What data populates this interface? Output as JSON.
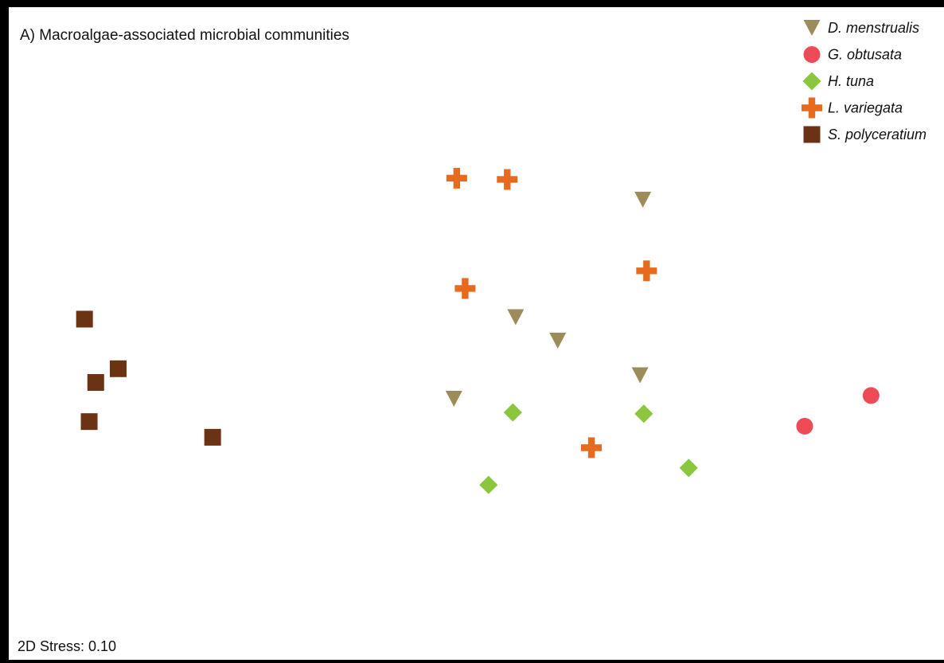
{
  "chart_data": {
    "type": "scatter",
    "title": "A) Macroalgae-associated microbial communities",
    "stress_label": "2D Stress: 0.10",
    "xlim": [
      0,
      100
    ],
    "ylim": [
      0,
      100
    ],
    "grid": false,
    "axes_shown": false,
    "legend_position": "top-right",
    "series": [
      {
        "name": "D. menstrualis",
        "marker": "triangle-down",
        "color": "#9b8c5a",
        "points": [
          [
            67.8,
            70.5
          ],
          [
            54.2,
            52.5
          ],
          [
            58.7,
            48.9
          ],
          [
            67.5,
            43.6
          ],
          [
            47.6,
            40.0
          ]
        ]
      },
      {
        "name": "G. obtusata",
        "marker": "circle",
        "color": "#ef4b57",
        "points": [
          [
            92.2,
            40.5
          ],
          [
            85.1,
            35.8
          ]
        ]
      },
      {
        "name": "H. tuna",
        "marker": "diamond",
        "color": "#8cc63f",
        "points": [
          [
            53.9,
            37.9
          ],
          [
            67.9,
            37.7
          ],
          [
            72.7,
            29.4
          ],
          [
            51.3,
            26.8
          ]
        ]
      },
      {
        "name": "L. variegata",
        "marker": "cross",
        "color": "#e66b1f",
        "points": [
          [
            47.9,
            73.8
          ],
          [
            53.3,
            73.6
          ],
          [
            68.2,
            59.6
          ],
          [
            48.8,
            56.9
          ],
          [
            62.3,
            32.5
          ]
        ]
      },
      {
        "name": "S. polyceratium",
        "marker": "square",
        "color": "#6b3214",
        "points": [
          [
            8.1,
            52.2
          ],
          [
            11.7,
            44.6
          ],
          [
            9.3,
            42.5
          ],
          [
            8.6,
            36.5
          ],
          [
            21.8,
            34.1
          ]
        ]
      }
    ]
  }
}
